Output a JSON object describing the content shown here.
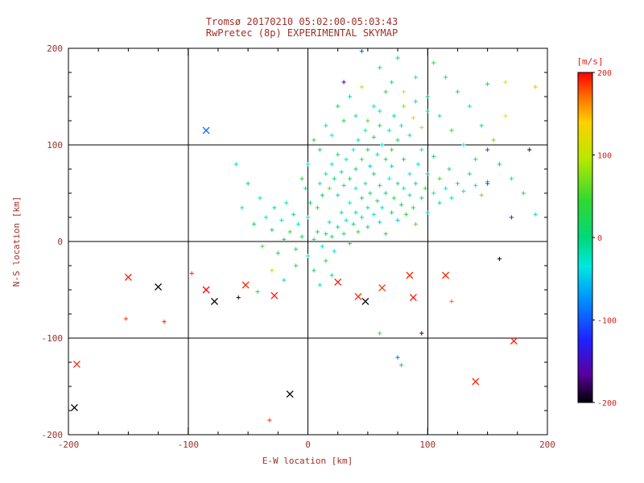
{
  "title": {
    "line1": "Tromsø 20170210 05:02:00-05:03:43",
    "line2": "RwPretec (8p) EXPERIMENTAL SKYMAP"
  },
  "colors": {
    "title_text": "#9e2f28",
    "colorbar_text": "#cf221c",
    "frame": "#000000",
    "background": "#ffffff"
  },
  "chart_data": {
    "type": "scatter",
    "xlabel": "E-W location [km]",
    "ylabel": "N-S location [km]",
    "xlim": [
      -200,
      200
    ],
    "ylim": [
      -200,
      200
    ],
    "xticks": [
      -200,
      -100,
      0,
      100,
      200
    ],
    "yticks": [
      -200,
      -100,
      0,
      100,
      200
    ],
    "grid_lines": [
      -100,
      0,
      100
    ],
    "legend": "none",
    "grid": true,
    "colorbar": {
      "label": "[m/s]",
      "ticks": [
        200,
        100,
        0,
        -100,
        -200
      ],
      "vmin": -200,
      "vmax": 200
    },
    "colormap": [
      {
        "v": -200,
        "c": "#000000"
      },
      {
        "v": -165,
        "c": "#5a00a0"
      },
      {
        "v": -125,
        "c": "#2020ff"
      },
      {
        "v": -75,
        "c": "#0090ff"
      },
      {
        "v": -35,
        "c": "#00e8e0"
      },
      {
        "v": 0,
        "c": "#00d878"
      },
      {
        "v": 45,
        "c": "#30d830"
      },
      {
        "v": 95,
        "c": "#b8e800"
      },
      {
        "v": 140,
        "c": "#ffd000"
      },
      {
        "v": 170,
        "c": "#ff7000"
      },
      {
        "v": 200,
        "c": "#ff0000"
      }
    ],
    "points": [
      [
        5,
        2,
        -10
      ],
      [
        8,
        10,
        15
      ],
      [
        12,
        -5,
        -30
      ],
      [
        15,
        8,
        5
      ],
      [
        18,
        20,
        -20
      ],
      [
        20,
        5,
        25
      ],
      [
        22,
        -10,
        -40
      ],
      [
        25,
        15,
        0
      ],
      [
        28,
        30,
        -15
      ],
      [
        30,
        8,
        30
      ],
      [
        32,
        22,
        -25
      ],
      [
        35,
        -2,
        10
      ],
      [
        35,
        40,
        -35
      ],
      [
        38,
        18,
        20
      ],
      [
        40,
        30,
        -10
      ],
      [
        40,
        55,
        -30
      ],
      [
        42,
        10,
        40
      ],
      [
        45,
        25,
        -20
      ],
      [
        45,
        45,
        5
      ],
      [
        48,
        60,
        -40
      ],
      [
        50,
        15,
        25
      ],
      [
        50,
        35,
        -15
      ],
      [
        52,
        50,
        10
      ],
      [
        55,
        28,
        -30
      ],
      [
        55,
        70,
        -5
      ],
      [
        58,
        42,
        20
      ],
      [
        60,
        20,
        -45
      ],
      [
        60,
        58,
        15
      ],
      [
        62,
        35,
        -25
      ],
      [
        65,
        50,
        0
      ],
      [
        65,
        8,
        35
      ],
      [
        68,
        65,
        -35
      ],
      [
        70,
        30,
        10
      ],
      [
        70,
        78,
        -20
      ],
      [
        72,
        45,
        30
      ],
      [
        75,
        60,
        -10
      ],
      [
        75,
        22,
        -50
      ],
      [
        78,
        38,
        15
      ],
      [
        80,
        55,
        -30
      ],
      [
        80,
        85,
        5
      ],
      [
        82,
        28,
        45
      ],
      [
        85,
        48,
        -20
      ],
      [
        85,
        70,
        -40
      ],
      [
        88,
        35,
        25
      ],
      [
        90,
        60,
        -15
      ],
      [
        90,
        18,
        60
      ],
      [
        92,
        80,
        -30
      ],
      [
        95,
        45,
        10
      ],
      [
        95,
        95,
        -25
      ],
      [
        98,
        55,
        35
      ],
      [
        100,
        30,
        -45
      ],
      [
        100,
        70,
        0
      ],
      [
        105,
        50,
        -30
      ],
      [
        105,
        88,
        20
      ],
      [
        110,
        40,
        -15
      ],
      [
        110,
        65,
        50
      ],
      [
        115,
        55,
        -35
      ],
      [
        118,
        75,
        10
      ],
      [
        120,
        45,
        -20
      ],
      [
        125,
        60,
        30
      ],
      [
        130,
        52,
        -40
      ],
      [
        135,
        70,
        15
      ],
      [
        140,
        58,
        -25
      ],
      [
        145,
        48,
        70
      ],
      [
        150,
        62,
        -15
      ],
      [
        -5,
        5,
        20
      ],
      [
        -8,
        18,
        -30
      ],
      [
        -10,
        -8,
        10
      ],
      [
        -12,
        28,
        -15
      ],
      [
        -15,
        10,
        40
      ],
      [
        -18,
        40,
        -25
      ],
      [
        -20,
        2,
        5
      ],
      [
        -22,
        22,
        -40
      ],
      [
        -25,
        -12,
        25
      ],
      [
        -28,
        35,
        -10
      ],
      [
        -30,
        12,
        15
      ],
      [
        -35,
        25,
        -30
      ],
      [
        -38,
        -5,
        50
      ],
      [
        -40,
        45,
        -20
      ],
      [
        -45,
        18,
        10
      ],
      [
        -50,
        60,
        15
      ],
      [
        -55,
        35,
        -30
      ],
      [
        -60,
        80,
        -20
      ],
      [
        -42,
        -52,
        20
      ],
      [
        -30,
        -30,
        90
      ],
      [
        -20,
        -40,
        -15
      ],
      [
        -10,
        -25,
        30
      ],
      [
        0,
        -15,
        -35
      ],
      [
        5,
        -30,
        15
      ],
      [
        10,
        -45,
        -25
      ],
      [
        15,
        -20,
        45
      ],
      [
        20,
        -35,
        -10
      ],
      [
        0,
        25,
        -30
      ],
      [
        2,
        40,
        20
      ],
      [
        -2,
        55,
        -15
      ],
      [
        8,
        35,
        35
      ],
      [
        10,
        60,
        -40
      ],
      [
        12,
        48,
        10
      ],
      [
        15,
        70,
        -20
      ],
      [
        18,
        55,
        60
      ],
      [
        20,
        80,
        -30
      ],
      [
        22,
        65,
        5
      ],
      [
        25,
        48,
        -45
      ],
      [
        25,
        90,
        25
      ],
      [
        28,
        72,
        -15
      ],
      [
        30,
        58,
        40
      ],
      [
        32,
        85,
        -25
      ],
      [
        35,
        65,
        15
      ],
      [
        38,
        95,
        -35
      ],
      [
        40,
        75,
        0
      ],
      [
        42,
        105,
        -20
      ],
      [
        45,
        85,
        55
      ],
      [
        48,
        115,
        -30
      ],
      [
        50,
        95,
        10
      ],
      [
        52,
        78,
        -50
      ],
      [
        55,
        108,
        30
      ],
      [
        58,
        90,
        -15
      ],
      [
        60,
        120,
        20
      ],
      [
        62,
        100,
        -40
      ],
      [
        65,
        85,
        5
      ],
      [
        68,
        115,
        -25
      ],
      [
        70,
        95,
        45
      ],
      [
        72,
        130,
        -10
      ],
      [
        75,
        105,
        15
      ],
      [
        78,
        120,
        -30
      ],
      [
        80,
        140,
        80
      ],
      [
        85,
        110,
        -20
      ],
      [
        88,
        128,
        120
      ],
      [
        90,
        145,
        -45
      ],
      [
        95,
        118,
        110
      ],
      [
        100,
        135,
        -15
      ],
      [
        30,
        125,
        25
      ],
      [
        20,
        110,
        -35
      ],
      [
        10,
        95,
        10
      ],
      [
        0,
        80,
        -25
      ],
      [
        -5,
        65,
        40
      ],
      [
        35,
        150,
        -15
      ],
      [
        45,
        160,
        90
      ],
      [
        55,
        140,
        -30
      ],
      [
        65,
        155,
        20
      ],
      [
        40,
        130,
        -20
      ],
      [
        50,
        125,
        60
      ],
      [
        60,
        135,
        -40
      ],
      [
        25,
        140,
        10
      ],
      [
        15,
        120,
        -25
      ],
      [
        5,
        105,
        30
      ],
      [
        70,
        165,
        -15
      ],
      [
        80,
        155,
        130
      ],
      [
        90,
        170,
        -30
      ],
      [
        100,
        150,
        15
      ],
      [
        110,
        130,
        -20
      ],
      [
        120,
        115,
        45
      ],
      [
        130,
        100,
        -35
      ],
      [
        140,
        85,
        25
      ],
      [
        150,
        95,
        -110
      ],
      [
        160,
        80,
        10
      ],
      [
        170,
        65,
        -25
      ],
      [
        180,
        50,
        35
      ],
      [
        105,
        185,
        40
      ],
      [
        60,
        180,
        -10
      ],
      [
        75,
        190,
        25
      ],
      [
        45,
        197,
        -100
      ],
      [
        30,
        165,
        -170
      ],
      [
        115,
        170,
        -20
      ],
      [
        125,
        155,
        20
      ],
      [
        135,
        140,
        -30
      ],
      [
        145,
        120,
        -15
      ],
      [
        155,
        105,
        70
      ],
      [
        150,
        163,
        30
      ],
      [
        165,
        165,
        120
      ],
      [
        190,
        160,
        150
      ],
      [
        165,
        130,
        140
      ],
      [
        185,
        95,
        -180
      ],
      [
        170,
        25,
        -120
      ],
      [
        190,
        28,
        -30
      ],
      [
        160,
        -18,
        -190
      ],
      [
        150,
        60,
        -110
      ],
      [
        120,
        -62,
        170
      ],
      [
        95,
        -95,
        -180
      ],
      [
        75,
        -120,
        -90
      ],
      [
        78,
        -128,
        30
      ],
      [
        60,
        -95,
        50
      ],
      [
        -85,
        115,
        -90,
        "x"
      ],
      [
        -58,
        -58,
        -195
      ],
      [
        -152,
        -80,
        185
      ],
      [
        -120,
        -83,
        190
      ],
      [
        -97,
        -33,
        190
      ],
      [
        -32,
        -185,
        185
      ],
      [
        -15,
        -158,
        -200,
        "x"
      ],
      [
        -195,
        -172,
        -200,
        "x"
      ],
      [
        -193,
        -127,
        190,
        "x"
      ],
      [
        -150,
        -37,
        195,
        "x"
      ],
      [
        -125,
        -47,
        -200,
        "x"
      ],
      [
        -85,
        -50,
        200,
        "x"
      ],
      [
        -78,
        -62,
        -200,
        "x"
      ],
      [
        -52,
        -45,
        190,
        "x"
      ],
      [
        -28,
        -56,
        195,
        "x"
      ],
      [
        25,
        -42,
        195,
        "x"
      ],
      [
        42,
        -57,
        190,
        "x"
      ],
      [
        48,
        -62,
        -200,
        "x"
      ],
      [
        62,
        -48,
        185,
        "x"
      ],
      [
        85,
        -35,
        190,
        "x"
      ],
      [
        88,
        -58,
        195,
        "x"
      ],
      [
        115,
        -35,
        190,
        "x"
      ],
      [
        172,
        -103,
        195,
        "x"
      ],
      [
        140,
        -145,
        190,
        "x"
      ]
    ]
  }
}
